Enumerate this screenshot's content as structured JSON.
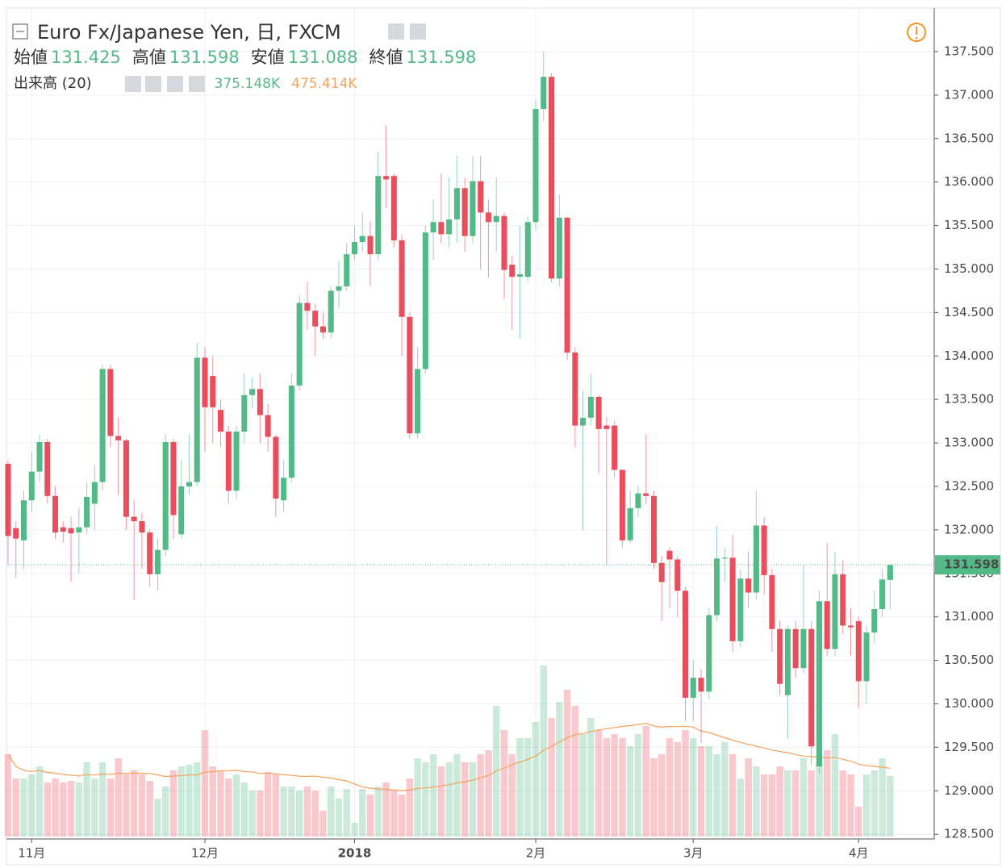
{
  "chart_data": {
    "type": "candlestick",
    "title": "Euro Fx/Japanese Yen, 日, FXCM",
    "ohlc_readout": [
      {
        "label": "始値",
        "value": 131.425
      },
      {
        "label": "高値",
        "value": 131.598
      },
      {
        "label": "安値",
        "value": 131.088
      },
      {
        "label": "終値",
        "value": 131.598
      }
    ],
    "volume_indicator": "出来高 (20)",
    "volume_readout": [
      "375.148K",
      "475.414K"
    ],
    "up_color": "#53b987",
    "down_color": "#eb4d5c",
    "ma_color": "#f7a35c",
    "ma_period": 20,
    "last_price": 131.598,
    "xlim": [
      -0.2,
      117.6
    ],
    "xticks": [
      {
        "value": 3,
        "label": "11月"
      },
      {
        "value": 25,
        "label": "12月"
      },
      {
        "value": 44,
        "label": "2018"
      },
      {
        "value": 67,
        "label": "2月"
      },
      {
        "value": 87,
        "label": "3月"
      },
      {
        "value": 108,
        "label": "4月"
      }
    ],
    "ylim": [
      128.446,
      137.945
    ],
    "yticks": [
      {
        "value": 128.5,
        "label": "128.500"
      },
      {
        "value": 129,
        "label": "129.000"
      },
      {
        "value": 129.5,
        "label": "129.500"
      },
      {
        "value": 130,
        "label": "130.000"
      },
      {
        "value": 130.5,
        "label": "130.500"
      },
      {
        "value": 131,
        "label": "131.000"
      },
      {
        "value": 131.5,
        "label": "131.500"
      },
      {
        "value": 132,
        "label": "132.000"
      },
      {
        "value": 132.5,
        "label": "132.500"
      },
      {
        "value": 133,
        "label": "133.000"
      },
      {
        "value": 133.5,
        "label": "133.500"
      },
      {
        "value": 134,
        "label": "134.000"
      },
      {
        "value": 134.5,
        "label": "134.500"
      },
      {
        "value": 135,
        "label": "135.000"
      },
      {
        "value": 135.5,
        "label": "135.500"
      },
      {
        "value": 136,
        "label": "136.000"
      },
      {
        "value": 136.5,
        "label": "136.500"
      },
      {
        "value": 137,
        "label": "137.000"
      },
      {
        "value": 137.5,
        "label": "137.500"
      }
    ],
    "volume_lim": [
      0,
      1500
    ],
    "grid": true,
    "open": [
      132.76,
      132.02,
      131.88,
      132.34,
      132.67,
      133.01,
      132.39,
      132.03,
      132.02,
      131.97,
      132.03,
      132.3,
      132.55,
      133.85,
      133.08,
      133.03,
      132.15,
      132.1,
      131.97,
      131.49,
      131.77,
      133.01,
      131.95,
      132.5,
      132.55,
      133.98,
      133.77,
      133.38,
      133.13,
      132.45,
      133.13,
      133.55,
      133.62,
      133.32,
      133.07,
      132.34,
      132.6,
      133.66,
      134.61,
      134.52,
      134.34,
      134.27,
      134.75,
      134.8,
      135.17,
      135.31,
      135.38,
      135.17,
      136.07,
      136.07,
      135.33,
      134.45,
      133.11,
      133.85,
      135.42,
      135.54,
      135.4,
      135.57,
      135.93,
      135.38,
      136.01,
      135.65,
      135.54,
      135.61,
      135.05,
      134.91,
      134.91,
      135.54,
      136.84,
      137.21,
      134.89,
      135.59,
      134.04,
      133.2,
      133.29,
      133.53,
      133.2,
      133.2,
      132.69,
      131.88,
      132.25,
      132.42,
      132.39,
      131.62,
      131.76,
      131.66,
      131.3,
      130.07,
      130.3,
      130.14,
      131.02,
      131.67,
      131.68,
      130.72,
      131.44,
      131.28,
      132.05,
      131.48,
      130.86,
      130.1,
      130.86,
      130.41,
      130.86,
      129.28,
      131.18,
      130.63,
      131.49,
      130.9,
      130.95,
      130.26,
      130.82,
      131.09,
      131.425
    ],
    "high": [
      132.8,
      132.1,
      132.45,
      132.9,
      133.1,
      133.05,
      132.5,
      132.1,
      132.15,
      132.25,
      132.55,
      132.75,
      133.9,
      133.9,
      133.3,
      133.05,
      132.35,
      132.2,
      132.0,
      131.9,
      133.1,
      133.05,
      132.8,
      133.1,
      134.15,
      134.1,
      134.0,
      133.5,
      133.2,
      133.2,
      133.8,
      133.75,
      133.8,
      133.45,
      133.1,
      132.8,
      133.8,
      134.7,
      134.85,
      134.6,
      134.5,
      134.8,
      135.1,
      135.3,
      135.5,
      135.65,
      135.55,
      136.35,
      136.65,
      136.1,
      135.4,
      134.5,
      134.1,
      135.5,
      135.8,
      136.1,
      136.05,
      136.3,
      136.05,
      136.3,
      136.3,
      135.8,
      136.05,
      135.65,
      135.15,
      135.5,
      135.6,
      136.95,
      137.5,
      137.25,
      135.85,
      135.6,
      134.1,
      133.6,
      133.8,
      133.55,
      133.3,
      133.25,
      132.7,
      132.45,
      132.5,
      133.1,
      132.45,
      131.7,
      131.8,
      131.7,
      131.35,
      130.5,
      130.4,
      131.1,
      132.05,
      131.8,
      131.95,
      131.55,
      131.75,
      132.45,
      132.15,
      131.55,
      130.95,
      130.9,
      130.95,
      131.6,
      130.95,
      131.3,
      131.85,
      131.75,
      131.65,
      131.1,
      131.0,
      130.9,
      131.3,
      131.55,
      131.598
    ],
    "low": [
      131.6,
      131.45,
      131.55,
      132.2,
      132.55,
      132.3,
      131.9,
      131.85,
      131.4,
      131.5,
      131.95,
      132.0,
      132.45,
      132.95,
      132.4,
      132.0,
      131.2,
      131.55,
      131.35,
      131.3,
      131.7,
      131.9,
      131.9,
      132.4,
      132.5,
      132.9,
      133.0,
      132.95,
      132.3,
      132.35,
      133.0,
      133.4,
      133.0,
      132.9,
      132.15,
      132.2,
      132.55,
      133.6,
      134.3,
      134.0,
      134.2,
      134.2,
      134.55,
      134.75,
      135.1,
      135.2,
      134.8,
      135.1,
      135.7,
      135.25,
      134.0,
      133.05,
      133.05,
      133.8,
      135.1,
      135.3,
      135.25,
      135.3,
      135.2,
      135.3,
      135.0,
      134.9,
      135.2,
      134.65,
      134.3,
      134.2,
      134.85,
      135.45,
      136.7,
      134.85,
      134.8,
      133.95,
      132.95,
      132.0,
      133.2,
      132.65,
      131.6,
      132.6,
      131.8,
      131.85,
      132.15,
      132.3,
      131.55,
      130.95,
      131.1,
      131.0,
      129.8,
      129.8,
      129.55,
      130.05,
      130.95,
      131.4,
      130.6,
      130.65,
      131.1,
      131.2,
      131.25,
      130.6,
      130.1,
      129.6,
      130.3,
      130.35,
      129.3,
      129.2,
      130.55,
      130.55,
      130.8,
      130.55,
      129.95,
      130.0,
      130.7,
      131.0,
      131.088
    ],
    "close": [
      131.93,
      131.9,
      132.34,
      132.67,
      133.01,
      132.39,
      131.97,
      131.98,
      131.96,
      132.03,
      132.38,
      132.55,
      133.85,
      133.08,
      133.03,
      132.15,
      132.1,
      131.97,
      131.49,
      131.77,
      133.01,
      132.17,
      132.5,
      132.55,
      133.98,
      133.41,
      133.41,
      133.13,
      132.45,
      133.13,
      133.55,
      133.62,
      133.32,
      133.07,
      132.36,
      132.6,
      133.66,
      134.61,
      134.52,
      134.34,
      134.27,
      134.75,
      134.8,
      135.17,
      135.31,
      135.38,
      135.17,
      136.07,
      136.03,
      135.33,
      134.45,
      133.11,
      133.85,
      135.42,
      135.54,
      135.4,
      135.57,
      135.93,
      135.38,
      136.01,
      135.65,
      135.54,
      135.61,
      134.99,
      134.91,
      134.94,
      135.54,
      136.84,
      137.21,
      134.89,
      135.59,
      134.04,
      133.2,
      133.29,
      133.53,
      133.16,
      133.16,
      132.69,
      131.88,
      132.25,
      132.42,
      132.39,
      131.62,
      131.4,
      131.66,
      131.3,
      130.07,
      130.3,
      130.14,
      131.02,
      131.67,
      131.68,
      130.72,
      131.44,
      131.28,
      132.05,
      131.48,
      130.86,
      130.23,
      130.86,
      130.41,
      130.86,
      129.51,
      131.18,
      130.63,
      131.49,
      130.9,
      130.88,
      130.26,
      130.82,
      131.09,
      131.43,
      131.598
    ],
    "volume": [
      510,
      360,
      360,
      385,
      435,
      335,
      360,
      335,
      345,
      335,
      460,
      360,
      460,
      360,
      485,
      385,
      410,
      385,
      345,
      235,
      310,
      410,
      435,
      445,
      460,
      660,
      435,
      410,
      360,
      385,
      335,
      285,
      285,
      400,
      385,
      310,
      310,
      285,
      310,
      285,
      160,
      310,
      235,
      295,
      85,
      295,
      260,
      310,
      335,
      285,
      260,
      360,
      485,
      460,
      510,
      435,
      460,
      510,
      460,
      460,
      510,
      535,
      810,
      660,
      510,
      610,
      610,
      710,
      1060,
      735,
      835,
      910,
      810,
      635,
      735,
      660,
      610,
      635,
      610,
      560,
      635,
      685,
      485,
      510,
      610,
      585,
      660,
      610,
      560,
      560,
      510,
      585,
      510,
      360,
      485,
      435,
      385,
      385,
      435,
      410,
      410,
      485,
      410,
      460,
      535,
      635,
      410,
      385,
      185,
      385,
      410,
      485,
      375.148
    ]
  }
}
